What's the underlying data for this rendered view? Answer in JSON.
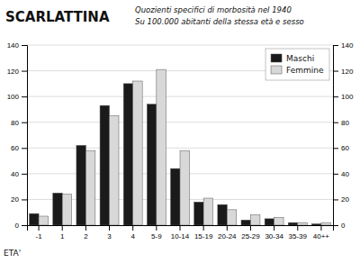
{
  "chart_data": {
    "type": "bar",
    "title": "SCARLATTINA",
    "subtitle": [
      "Quozienti specifici di morbosità nel 1940",
      "Su 100.000 abitanti della stessa età e sesso"
    ],
    "x_label": "ETA'",
    "categories": [
      "-1",
      "1",
      "2",
      "3",
      "4",
      "5-9",
      "10-14",
      "15-19",
      "20-24",
      "25-29",
      "30-34",
      "35-39",
      "40++"
    ],
    "series": [
      {
        "name": "Maschi",
        "color": "#1a1a1a",
        "values": [
          9,
          25,
          62,
          93,
          110,
          94,
          44,
          18,
          16,
          4,
          5,
          2,
          1
        ]
      },
      {
        "name": "Femmine",
        "color": "#d8d8d8",
        "values": [
          7,
          24,
          58,
          85,
          112,
          121,
          58,
          21,
          12,
          8,
          6,
          2,
          2
        ]
      }
    ],
    "ylim": [
      0,
      140
    ],
    "yticks": [
      0,
      20,
      40,
      60,
      80,
      100,
      120,
      140
    ],
    "y2lim": [
      0,
      140
    ],
    "y2ticks": [
      0,
      20,
      40,
      60,
      80,
      100,
      120,
      140
    ],
    "grid": true,
    "legend": "top-right"
  }
}
